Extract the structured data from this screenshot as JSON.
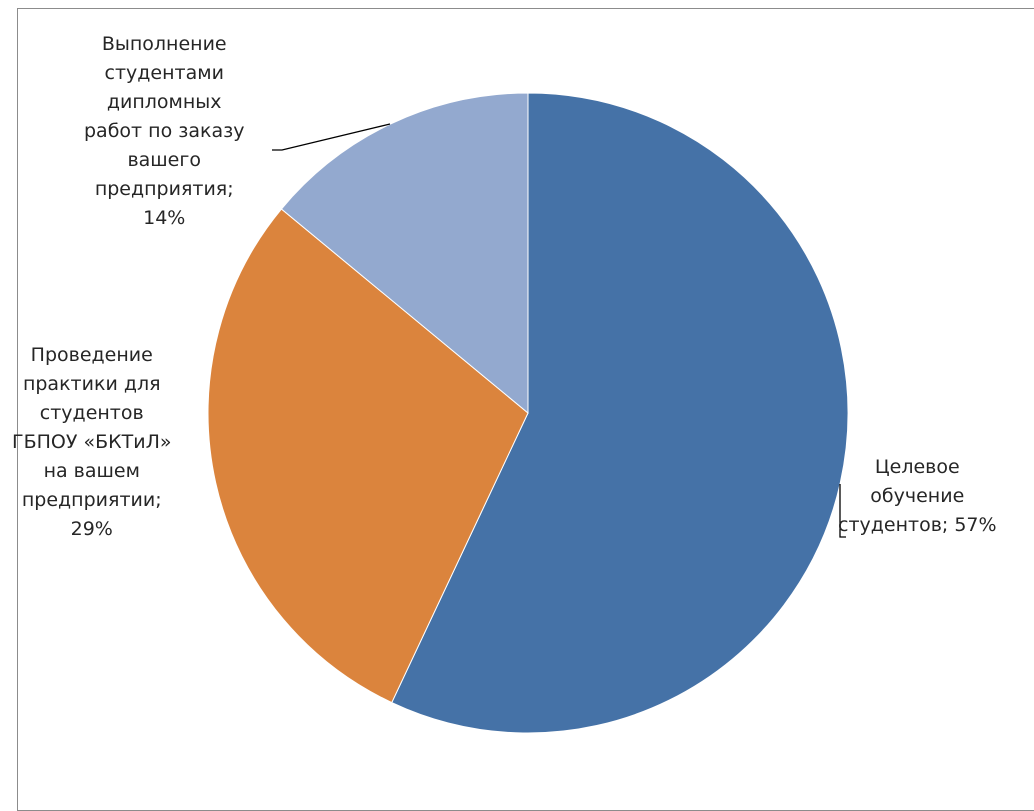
{
  "chart_data": {
    "type": "pie",
    "slices": [
      {
        "name": "Целевое обучение студентов",
        "value": 57,
        "color": "#4572a7",
        "label_lines": [
          "Целевое",
          "обучение",
          "студентов; 57%"
        ]
      },
      {
        "name": "Проведение практики для студентов ГБПОУ «БКТиЛ» на вашем предприятии",
        "value": 29,
        "color": "#db843d",
        "label_lines": [
          "Проведение",
          "практики для",
          "студентов",
          "ГБПОУ «БКТиЛ»",
          "на вашем",
          "предприятии;",
          "29%"
        ]
      },
      {
        "name": "Выполнение студентами дипломных работ по заказу вашего предприятия",
        "value": 14,
        "color": "#93a9cf",
        "label_lines": [
          "Выполнение",
          "студентами",
          "дипломных",
          "работ по заказу",
          "вашего",
          "предприятия;",
          "14%"
        ]
      }
    ],
    "start_angle": "12 o'clock",
    "direction": "clockwise",
    "legend": "none"
  }
}
